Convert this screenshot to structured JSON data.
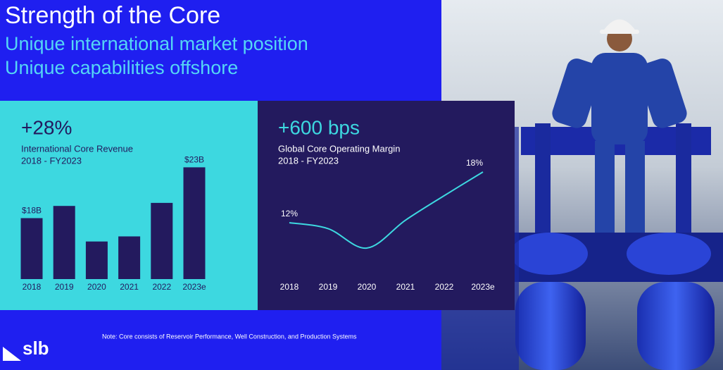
{
  "header": {
    "title": "Strength of the Core",
    "subtitle_lines": [
      "Unique international market position",
      "Unique capabilities offshore"
    ]
  },
  "chart_data": [
    {
      "type": "bar",
      "title": "+28%",
      "subtitle_lines": [
        "International Core Revenue",
        "2018 - FY2023"
      ],
      "categories": [
        "2018",
        "2019",
        "2020",
        "2021",
        "2022",
        "2023e"
      ],
      "values": [
        18,
        19.2,
        15.7,
        16.2,
        19.5,
        23
      ],
      "value_labels": [
        "$18B",
        null,
        null,
        null,
        null,
        "$23B"
      ],
      "color": "#231a5e",
      "ylim": [
        12,
        24
      ]
    },
    {
      "type": "line",
      "title": "+600 bps",
      "subtitle_lines": [
        "Global Core Operating Margin",
        "2018 - FY2023"
      ],
      "categories": [
        "2018",
        "2019",
        "2020",
        "2021",
        "2022",
        "2023e"
      ],
      "values": [
        12,
        11.3,
        9,
        12.3,
        15.2,
        18
      ],
      "value_labels": [
        "12%",
        null,
        null,
        null,
        null,
        "18%"
      ],
      "color": "#3dd8e0",
      "ylim": [
        6,
        20
      ]
    }
  ],
  "note": "Note: Core consists of Reservoir Performance, Well Construction, and Production Systems",
  "logo": "slb"
}
